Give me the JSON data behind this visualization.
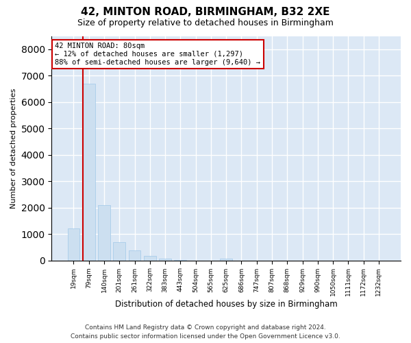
{
  "title": "42, MINTON ROAD, BIRMINGHAM, B32 2XE",
  "subtitle": "Size of property relative to detached houses in Birmingham",
  "xlabel": "Distribution of detached houses by size in Birmingham",
  "ylabel": "Number of detached properties",
  "bar_color": "#ccdff0",
  "bar_edge_color": "#a0c8e8",
  "background_color": "#dce8f5",
  "grid_color": "#ffffff",
  "annotation_box_color": "#cc0000",
  "property_line_color": "#cc0000",
  "categories": [
    "19sqm",
    "79sqm",
    "140sqm",
    "201sqm",
    "261sqm",
    "322sqm",
    "383sqm",
    "443sqm",
    "504sqm",
    "565sqm",
    "625sqm",
    "686sqm",
    "747sqm",
    "807sqm",
    "868sqm",
    "929sqm",
    "990sqm",
    "1050sqm",
    "1111sqm",
    "1172sqm",
    "1232sqm"
  ],
  "values": [
    1200,
    6700,
    2100,
    700,
    380,
    160,
    60,
    10,
    0,
    0,
    60,
    0,
    0,
    0,
    0,
    0,
    0,
    0,
    0,
    0,
    0
  ],
  "ylim": [
    0,
    8500
  ],
  "yticks": [
    0,
    1000,
    2000,
    3000,
    4000,
    5000,
    6000,
    7000,
    8000
  ],
  "property_label": "42 MINTON ROAD: 80sqm",
  "annotation_line1": "← 12% of detached houses are smaller (1,297)",
  "annotation_line2": "88% of semi-detached houses are larger (9,640) →",
  "property_bar_index": 1,
  "footer1": "Contains HM Land Registry data © Crown copyright and database right 2024.",
  "footer2": "Contains public sector information licensed under the Open Government Licence v3.0."
}
